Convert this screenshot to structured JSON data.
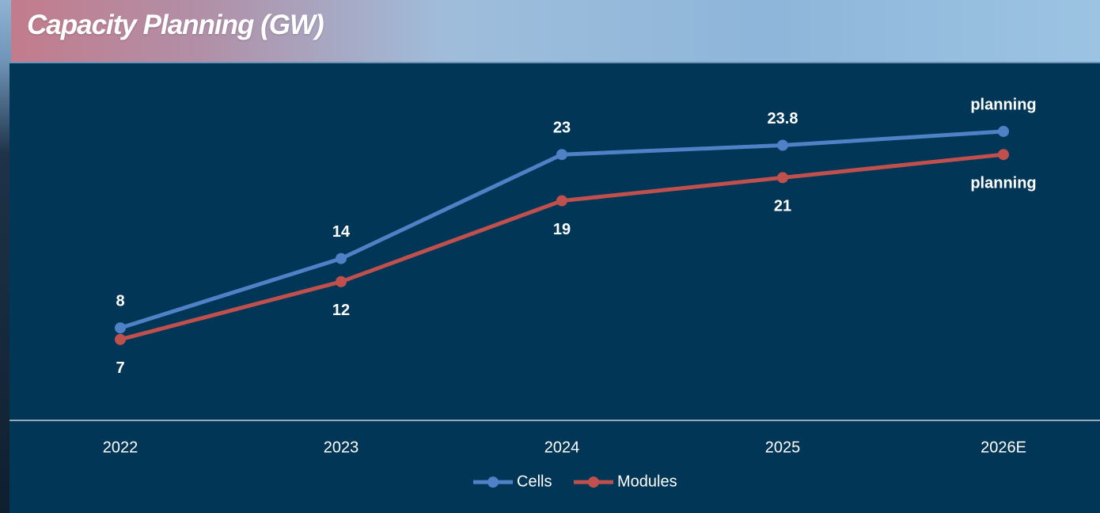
{
  "chart_data": {
    "type": "line",
    "title": "Capacity Planning (GW)",
    "categories": [
      "2022",
      "2023",
      "2024",
      "2025",
      "2026E"
    ],
    "series": [
      {
        "name": "Cells",
        "color": "#4f81c7",
        "values": [
          8,
          14,
          23,
          23.8,
          25
        ],
        "value_labels": [
          "8",
          "14",
          "23",
          "23.8",
          "planning"
        ]
      },
      {
        "name": "Modules",
        "color": "#c0504d",
        "values": [
          7,
          12,
          19,
          21,
          23
        ],
        "value_labels": [
          "7",
          "12",
          "19",
          "21",
          "planning"
        ]
      }
    ],
    "ylim": [
      0,
      30
    ],
    "legend": "bottom"
  }
}
